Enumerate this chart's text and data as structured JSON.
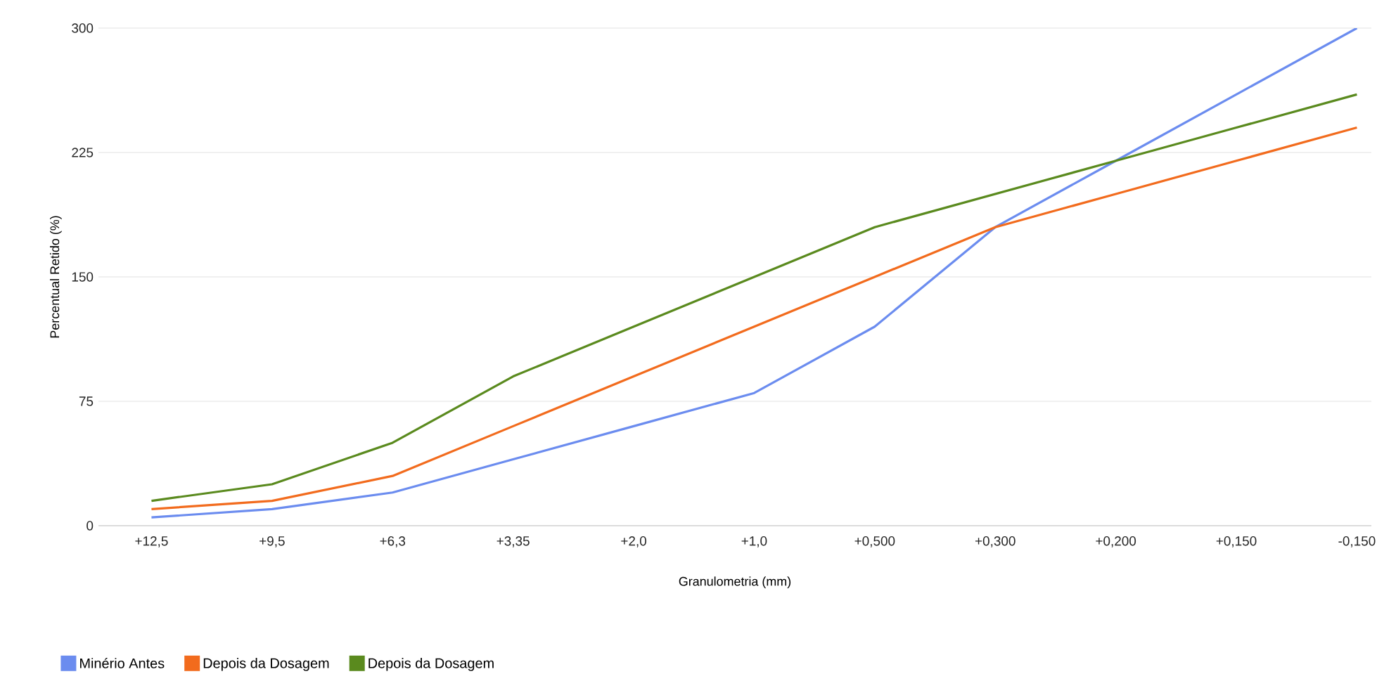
{
  "chart_data": {
    "type": "line",
    "xlabel": "Granulometria (mm)",
    "ylabel": "Percentual Retido (%)",
    "categories": [
      "+12,5",
      "+9,5",
      "+6,3",
      "+3,35",
      "+2,0",
      "+1,0",
      "+0,500",
      "+0,300",
      "+0,200",
      "+0,150",
      "-0,150"
    ],
    "series": [
      {
        "name": "Minério Antes",
        "color": "#6b8cef",
        "values": [
          5,
          10,
          20,
          40,
          60,
          80,
          120,
          180,
          220,
          260,
          300
        ]
      },
      {
        "name": "Depois da Dosagem",
        "color": "#f26b1d",
        "values": [
          10,
          15,
          30,
          60,
          90,
          120,
          150,
          180,
          200,
          220,
          240
        ]
      },
      {
        "name": "Depois da Dosagem",
        "color": "#5a8a1e",
        "values": [
          15,
          25,
          50,
          90,
          120,
          150,
          180,
          200,
          220,
          240,
          260
        ]
      }
    ],
    "ylim": [
      0,
      300
    ],
    "yticks": [
      0,
      75,
      150,
      225,
      300
    ],
    "grid": "y",
    "legend": "bottom left",
    "marker": "none",
    "line_style": "solid"
  }
}
